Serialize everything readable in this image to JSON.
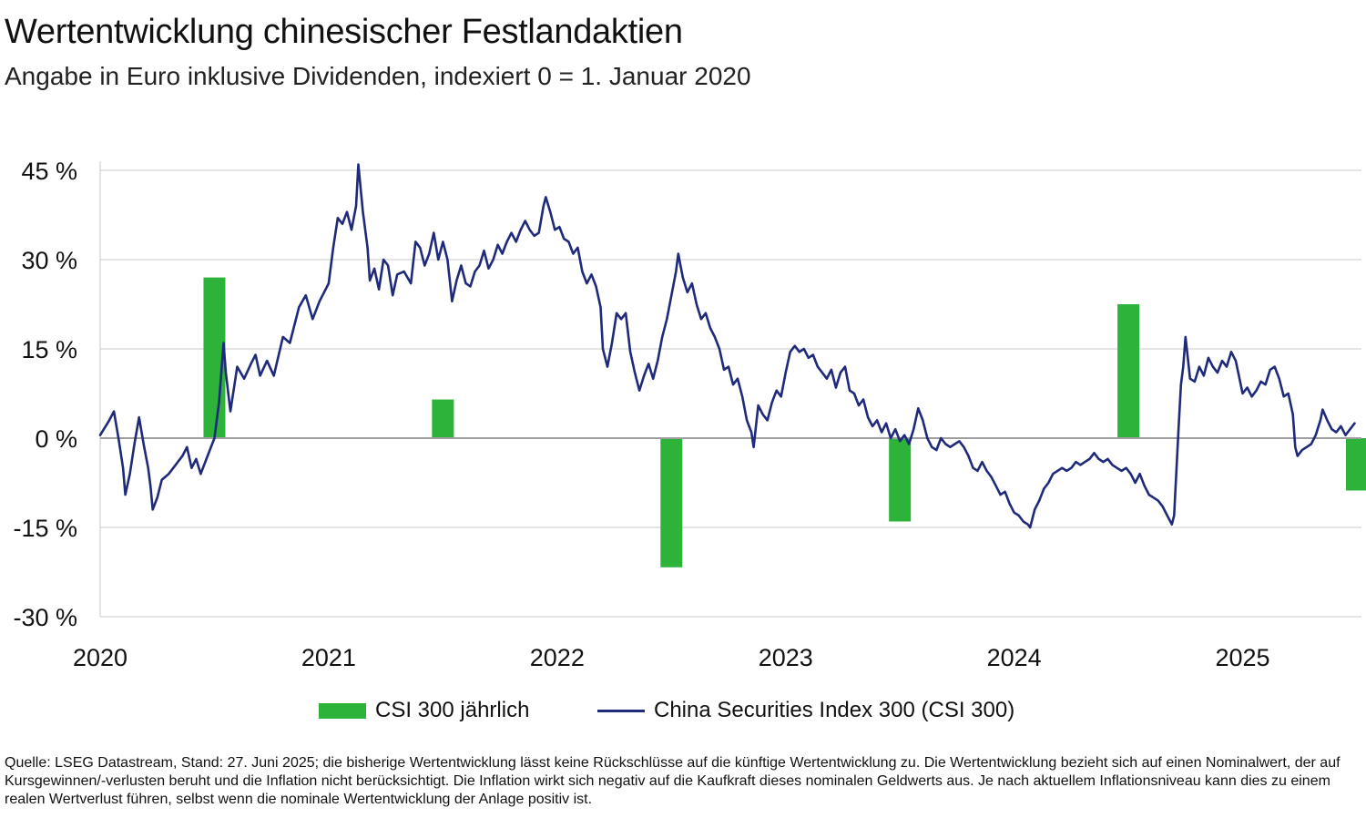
{
  "title": "Wertentwicklung chinesischer Festlandaktien",
  "subtitle": "Angabe in Euro inklusive Dividenden, indexiert 0 = 1. Januar 2020",
  "footnote": "Quelle: LSEG Datastream, Stand: 27. Juni 2025; die bisherige Wertentwicklung lässt keine Rückschlüsse auf die künftige Wertentwicklung zu. Die Wertentwicklung bezieht sich auf einen Nominalwert, der auf Kursgewinnen/-verlusten beruht und die Inflation nicht berücksichtigt. Die Inflation wirkt sich negativ auf die Kaufkraft dieses nominalen Geldwerts aus. Je nach aktuellem Inflationsniveau kann dies zu einem realen Wertverlust führen, selbst wenn die nominale Wertentwicklung der Anlage positiv ist.",
  "colors": {
    "bar": "#2db33a",
    "line": "#1f2a7a",
    "grid": "#c8c8c8",
    "zero": "#9e9e9e"
  },
  "chart_data": {
    "type": "bar+line",
    "title": "Wertentwicklung chinesischer Festlandaktien",
    "subtitle": "Angabe in Euro inklusive Dividenden, indexiert 0 = 1. Januar 2020",
    "ylim": [
      -30,
      45
    ],
    "yticks": [
      45,
      30,
      15,
      0,
      -15,
      -30
    ],
    "ytick_labels": [
      "45 %",
      "30 %",
      "15 %",
      "0 %",
      "-15 %",
      "-30 %"
    ],
    "xlim": [
      2020.0,
      2025.5
    ],
    "xticks": [
      2020,
      2021,
      2022,
      2023,
      2024,
      2025
    ],
    "xtick_labels": [
      "2020",
      "2021",
      "2022",
      "2023",
      "2024",
      "2025"
    ],
    "grid": true,
    "legend_position": "bottom",
    "bar_series": {
      "name": "CSI 300 jährlich",
      "x": [
        2020.5,
        2021.5,
        2022.5,
        2023.5,
        2024.5,
        2025.5
      ],
      "values": [
        27.0,
        6.5,
        -21.7,
        -14.0,
        22.5,
        -8.8
      ]
    },
    "line_series": {
      "name": "China Securities Index 300 (CSI 300)",
      "points": [
        [
          2020.0,
          0.5
        ],
        [
          2020.04,
          3.0
        ],
        [
          2020.06,
          4.5
        ],
        [
          2020.08,
          0.0
        ],
        [
          2020.1,
          -5.0
        ],
        [
          2020.11,
          -9.5
        ],
        [
          2020.13,
          -6.0
        ],
        [
          2020.15,
          -1.0
        ],
        [
          2020.17,
          3.5
        ],
        [
          2020.19,
          -1.0
        ],
        [
          2020.21,
          -5.0
        ],
        [
          2020.22,
          -8.0
        ],
        [
          2020.23,
          -12.0
        ],
        [
          2020.25,
          -10.0
        ],
        [
          2020.27,
          -7.0
        ],
        [
          2020.3,
          -6.0
        ],
        [
          2020.33,
          -4.5
        ],
        [
          2020.36,
          -3.0
        ],
        [
          2020.38,
          -1.5
        ],
        [
          2020.4,
          -5.0
        ],
        [
          2020.42,
          -3.5
        ],
        [
          2020.44,
          -6.0
        ],
        [
          2020.46,
          -4.0
        ],
        [
          2020.48,
          -2.0
        ],
        [
          2020.5,
          0.0
        ],
        [
          2020.52,
          6.0
        ],
        [
          2020.54,
          16.0
        ],
        [
          2020.55,
          11.0
        ],
        [
          2020.57,
          4.5
        ],
        [
          2020.6,
          12.0
        ],
        [
          2020.63,
          10.0
        ],
        [
          2020.66,
          12.5
        ],
        [
          2020.68,
          14.0
        ],
        [
          2020.7,
          10.5
        ],
        [
          2020.73,
          13.0
        ],
        [
          2020.76,
          10.5
        ],
        [
          2020.8,
          17.0
        ],
        [
          2020.83,
          16.0
        ],
        [
          2020.87,
          22.0
        ],
        [
          2020.9,
          24.0
        ],
        [
          2020.93,
          20.0
        ],
        [
          2020.96,
          23.0
        ],
        [
          2021.0,
          26.0
        ],
        [
          2021.02,
          32.0
        ],
        [
          2021.04,
          37.0
        ],
        [
          2021.06,
          36.0
        ],
        [
          2021.08,
          38.0
        ],
        [
          2021.1,
          35.0
        ],
        [
          2021.12,
          39.0
        ],
        [
          2021.13,
          46.0
        ],
        [
          2021.15,
          38.0
        ],
        [
          2021.17,
          32.0
        ],
        [
          2021.18,
          26.5
        ],
        [
          2021.2,
          28.5
        ],
        [
          2021.22,
          25.0
        ],
        [
          2021.24,
          30.0
        ],
        [
          2021.26,
          29.0
        ],
        [
          2021.28,
          24.0
        ],
        [
          2021.3,
          27.5
        ],
        [
          2021.33,
          28.0
        ],
        [
          2021.36,
          26.0
        ],
        [
          2021.38,
          33.0
        ],
        [
          2021.4,
          32.0
        ],
        [
          2021.42,
          29.0
        ],
        [
          2021.44,
          31.0
        ],
        [
          2021.46,
          34.5
        ],
        [
          2021.48,
          30.0
        ],
        [
          2021.5,
          33.0
        ],
        [
          2021.52,
          30.0
        ],
        [
          2021.54,
          23.0
        ],
        [
          2021.56,
          26.5
        ],
        [
          2021.58,
          29.0
        ],
        [
          2021.6,
          26.0
        ],
        [
          2021.62,
          25.5
        ],
        [
          2021.64,
          28.0
        ],
        [
          2021.66,
          29.0
        ],
        [
          2021.68,
          31.5
        ],
        [
          2021.7,
          28.5
        ],
        [
          2021.72,
          30.0
        ],
        [
          2021.74,
          32.5
        ],
        [
          2021.76,
          31.0
        ],
        [
          2021.78,
          33.0
        ],
        [
          2021.8,
          34.5
        ],
        [
          2021.82,
          33.0
        ],
        [
          2021.84,
          35.0
        ],
        [
          2021.86,
          36.5
        ],
        [
          2021.88,
          35.0
        ],
        [
          2021.9,
          34.0
        ],
        [
          2021.92,
          34.5
        ],
        [
          2021.94,
          39.0
        ],
        [
          2021.95,
          40.5
        ],
        [
          2021.97,
          38.0
        ],
        [
          2021.99,
          35.0
        ],
        [
          2022.01,
          35.5
        ],
        [
          2022.03,
          33.5
        ],
        [
          2022.05,
          33.0
        ],
        [
          2022.07,
          31.0
        ],
        [
          2022.09,
          32.0
        ],
        [
          2022.11,
          28.0
        ],
        [
          2022.13,
          26.0
        ],
        [
          2022.15,
          27.5
        ],
        [
          2022.17,
          25.5
        ],
        [
          2022.19,
          22.0
        ],
        [
          2022.2,
          15.0
        ],
        [
          2022.22,
          12.0
        ],
        [
          2022.24,
          16.0
        ],
        [
          2022.26,
          21.0
        ],
        [
          2022.28,
          20.0
        ],
        [
          2022.3,
          21.0
        ],
        [
          2022.32,
          14.5
        ],
        [
          2022.34,
          11.0
        ],
        [
          2022.36,
          8.0
        ],
        [
          2022.38,
          10.5
        ],
        [
          2022.4,
          12.5
        ],
        [
          2022.42,
          10.0
        ],
        [
          2022.44,
          13.0
        ],
        [
          2022.46,
          17.0
        ],
        [
          2022.48,
          20.0
        ],
        [
          2022.5,
          24.0
        ],
        [
          2022.52,
          28.0
        ],
        [
          2022.53,
          31.0
        ],
        [
          2022.55,
          27.0
        ],
        [
          2022.57,
          24.5
        ],
        [
          2022.59,
          26.0
        ],
        [
          2022.61,
          22.5
        ],
        [
          2022.63,
          20.0
        ],
        [
          2022.65,
          21.0
        ],
        [
          2022.67,
          18.5
        ],
        [
          2022.69,
          17.0
        ],
        [
          2022.71,
          15.0
        ],
        [
          2022.73,
          11.5
        ],
        [
          2022.75,
          12.0
        ],
        [
          2022.77,
          9.0
        ],
        [
          2022.79,
          10.0
        ],
        [
          2022.81,
          7.0
        ],
        [
          2022.83,
          3.0
        ],
        [
          2022.85,
          1.0
        ],
        [
          2022.86,
          -1.5
        ],
        [
          2022.88,
          5.5
        ],
        [
          2022.9,
          4.0
        ],
        [
          2022.92,
          3.0
        ],
        [
          2022.94,
          6.0
        ],
        [
          2022.96,
          8.0
        ],
        [
          2022.98,
          7.0
        ],
        [
          2023.0,
          11.0
        ],
        [
          2023.02,
          14.5
        ],
        [
          2023.04,
          15.5
        ],
        [
          2023.06,
          14.5
        ],
        [
          2023.08,
          15.0
        ],
        [
          2023.1,
          13.5
        ],
        [
          2023.12,
          14.0
        ],
        [
          2023.14,
          12.0
        ],
        [
          2023.16,
          11.0
        ],
        [
          2023.18,
          10.0
        ],
        [
          2023.2,
          11.5
        ],
        [
          2023.22,
          8.5
        ],
        [
          2023.24,
          11.0
        ],
        [
          2023.26,
          12.0
        ],
        [
          2023.28,
          8.0
        ],
        [
          2023.3,
          7.5
        ],
        [
          2023.32,
          5.5
        ],
        [
          2023.34,
          6.5
        ],
        [
          2023.36,
          3.5
        ],
        [
          2023.38,
          2.0
        ],
        [
          2023.4,
          3.0
        ],
        [
          2023.42,
          1.0
        ],
        [
          2023.44,
          2.5
        ],
        [
          2023.46,
          0.0
        ],
        [
          2023.48,
          1.5
        ],
        [
          2023.5,
          -0.5
        ],
        [
          2023.52,
          0.5
        ],
        [
          2023.54,
          -1.0
        ],
        [
          2023.56,
          1.5
        ],
        [
          2023.58,
          5.0
        ],
        [
          2023.6,
          3.0
        ],
        [
          2023.62,
          0.0
        ],
        [
          2023.64,
          -1.5
        ],
        [
          2023.66,
          -2.0
        ],
        [
          2023.68,
          0.0
        ],
        [
          2023.7,
          -1.0
        ],
        [
          2023.72,
          -1.5
        ],
        [
          2023.74,
          -1.0
        ],
        [
          2023.76,
          -0.5
        ],
        [
          2023.78,
          -1.5
        ],
        [
          2023.8,
          -3.0
        ],
        [
          2023.82,
          -5.0
        ],
        [
          2023.84,
          -5.5
        ],
        [
          2023.86,
          -4.0
        ],
        [
          2023.88,
          -5.5
        ],
        [
          2023.9,
          -6.5
        ],
        [
          2023.92,
          -8.0
        ],
        [
          2023.94,
          -9.5
        ],
        [
          2023.96,
          -9.0
        ],
        [
          2023.98,
          -11.0
        ],
        [
          2024.0,
          -12.5
        ],
        [
          2024.02,
          -13.0
        ],
        [
          2024.04,
          -14.0
        ],
        [
          2024.06,
          -14.5
        ],
        [
          2024.07,
          -15.0
        ],
        [
          2024.09,
          -12.0
        ],
        [
          2024.11,
          -10.5
        ],
        [
          2024.13,
          -8.5
        ],
        [
          2024.15,
          -7.5
        ],
        [
          2024.17,
          -6.0
        ],
        [
          2024.19,
          -5.5
        ],
        [
          2024.21,
          -5.0
        ],
        [
          2024.23,
          -5.5
        ],
        [
          2024.25,
          -5.0
        ],
        [
          2024.27,
          -4.0
        ],
        [
          2024.29,
          -4.5
        ],
        [
          2024.31,
          -4.0
        ],
        [
          2024.33,
          -3.5
        ],
        [
          2024.35,
          -2.5
        ],
        [
          2024.37,
          -3.5
        ],
        [
          2024.39,
          -4.0
        ],
        [
          2024.41,
          -3.5
        ],
        [
          2024.43,
          -4.5
        ],
        [
          2024.45,
          -5.0
        ],
        [
          2024.47,
          -5.5
        ],
        [
          2024.49,
          -5.0
        ],
        [
          2024.51,
          -6.0
        ],
        [
          2024.53,
          -7.5
        ],
        [
          2024.55,
          -6.0
        ],
        [
          2024.57,
          -8.0
        ],
        [
          2024.59,
          -9.5
        ],
        [
          2024.61,
          -10.0
        ],
        [
          2024.63,
          -10.5
        ],
        [
          2024.65,
          -11.5
        ],
        [
          2024.67,
          -13.0
        ],
        [
          2024.69,
          -14.5
        ],
        [
          2024.7,
          -13.0
        ],
        [
          2024.72,
          2.0
        ],
        [
          2024.73,
          9.0
        ],
        [
          2024.74,
          12.0
        ],
        [
          2024.75,
          17.0
        ],
        [
          2024.77,
          10.0
        ],
        [
          2024.79,
          9.5
        ],
        [
          2024.81,
          12.0
        ],
        [
          2024.83,
          10.5
        ],
        [
          2024.85,
          13.5
        ],
        [
          2024.87,
          12.0
        ],
        [
          2024.89,
          11.0
        ],
        [
          2024.91,
          13.0
        ],
        [
          2024.93,
          12.0
        ],
        [
          2024.95,
          14.5
        ],
        [
          2024.97,
          13.0
        ],
        [
          2025.0,
          7.5
        ],
        [
          2025.02,
          8.5
        ],
        [
          2025.04,
          7.0
        ],
        [
          2025.06,
          8.0
        ],
        [
          2025.08,
          9.5
        ],
        [
          2025.1,
          9.0
        ],
        [
          2025.12,
          11.5
        ],
        [
          2025.14,
          12.0
        ],
        [
          2025.16,
          10.0
        ],
        [
          2025.18,
          7.0
        ],
        [
          2025.2,
          7.5
        ],
        [
          2025.22,
          4.0
        ],
        [
          2025.23,
          -1.5
        ],
        [
          2025.24,
          -3.0
        ],
        [
          2025.26,
          -2.0
        ],
        [
          2025.28,
          -1.5
        ],
        [
          2025.3,
          -1.0
        ],
        [
          2025.32,
          0.5
        ],
        [
          2025.34,
          3.0
        ],
        [
          2025.35,
          4.8
        ],
        [
          2025.37,
          3.0
        ],
        [
          2025.39,
          1.5
        ],
        [
          2025.41,
          1.0
        ],
        [
          2025.43,
          2.0
        ],
        [
          2025.45,
          0.5
        ],
        [
          2025.47,
          1.5
        ],
        [
          2025.49,
          2.5
        ]
      ]
    }
  }
}
